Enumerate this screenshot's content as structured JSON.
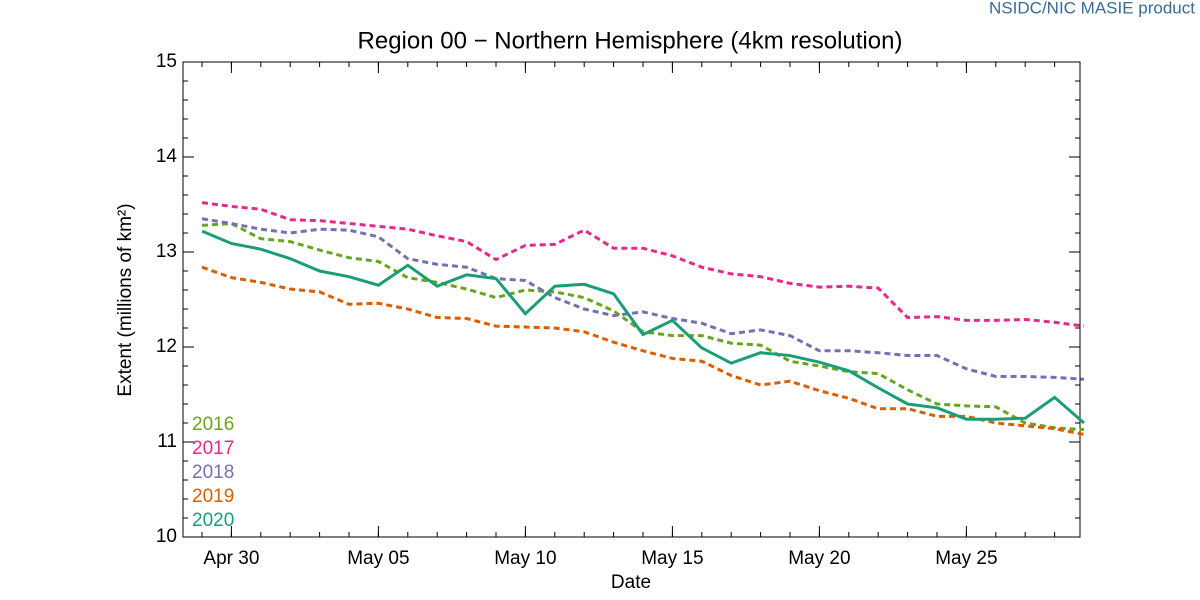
{
  "chart_data": {
    "type": "line",
    "source": "NSIDC/NIC MASIE product",
    "title": "Region 00 − Northern Hemisphere (4km resolution)",
    "xlabel": "Date",
    "ylabel": "Extent (millions of km²)",
    "x": [
      "Apr 29",
      "Apr 30",
      "May 01",
      "May 02",
      "May 03",
      "May 04",
      "May 05",
      "May 06",
      "May 07",
      "May 08",
      "May 09",
      "May 10",
      "May 11",
      "May 12",
      "May 13",
      "May 14",
      "May 15",
      "May 16",
      "May 17",
      "May 18",
      "May 19",
      "May 20",
      "May 21",
      "May 22",
      "May 23",
      "May 24",
      "May 25",
      "May 26",
      "May 27",
      "May 28",
      "May 29"
    ],
    "xticks": [
      "Apr 30",
      "May 05",
      "May 10",
      "May 15",
      "May 20",
      "May 25"
    ],
    "ylim": [
      10,
      15
    ],
    "yticks": [
      10,
      11,
      12,
      13,
      14,
      15
    ],
    "series": [
      {
        "name": "2016",
        "color": "#66a61e",
        "dashed": true,
        "values": [
          13.28,
          13.3,
          13.14,
          13.11,
          13.02,
          12.94,
          12.9,
          12.73,
          12.68,
          12.61,
          12.52,
          12.6,
          12.58,
          12.52,
          12.38,
          12.16,
          12.12,
          12.12,
          12.04,
          12.02,
          11.85,
          11.8,
          11.74,
          11.72,
          11.55,
          11.4,
          11.38,
          11.37,
          11.2,
          11.15,
          11.13
        ]
      },
      {
        "name": "2017",
        "color": "#e7298a",
        "dashed": true,
        "values": [
          13.52,
          13.48,
          13.45,
          13.34,
          13.33,
          13.3,
          13.27,
          13.24,
          13.17,
          13.11,
          12.92,
          13.07,
          13.08,
          13.23,
          13.04,
          13.04,
          12.96,
          12.84,
          12.77,
          12.74,
          12.67,
          12.63,
          12.64,
          12.62,
          12.31,
          12.32,
          12.28,
          12.28,
          12.29,
          12.26,
          12.22
        ]
      },
      {
        "name": "2018",
        "color": "#7570b3",
        "dashed": true,
        "values": [
          13.35,
          13.3,
          13.24,
          13.2,
          13.24,
          13.23,
          13.16,
          12.93,
          12.87,
          12.84,
          12.72,
          12.7,
          12.52,
          12.4,
          12.33,
          12.37,
          12.3,
          12.25,
          12.14,
          12.18,
          12.12,
          11.96,
          11.96,
          11.94,
          11.91,
          11.91,
          11.77,
          11.69,
          11.69,
          11.68,
          11.66
        ]
      },
      {
        "name": "2019",
        "color": "#d95f02",
        "dashed": true,
        "values": [
          12.84,
          12.73,
          12.68,
          12.61,
          12.58,
          12.45,
          12.46,
          12.4,
          12.31,
          12.3,
          12.22,
          12.21,
          12.2,
          12.16,
          12.05,
          11.96,
          11.88,
          11.85,
          11.7,
          11.6,
          11.64,
          11.54,
          11.46,
          11.35,
          11.35,
          11.27,
          11.27,
          11.2,
          11.17,
          11.14,
          11.08
        ]
      },
      {
        "name": "2020",
        "color": "#1b9e77",
        "dashed": false,
        "values": [
          13.22,
          13.09,
          13.03,
          12.93,
          12.8,
          12.74,
          12.65,
          12.86,
          12.64,
          12.76,
          12.72,
          12.35,
          12.64,
          12.66,
          12.56,
          12.13,
          12.28,
          11.99,
          11.83,
          11.94,
          11.91,
          11.84,
          11.75,
          11.57,
          11.4,
          11.36,
          11.24,
          11.24,
          11.25,
          11.47,
          11.2
        ]
      }
    ]
  }
}
